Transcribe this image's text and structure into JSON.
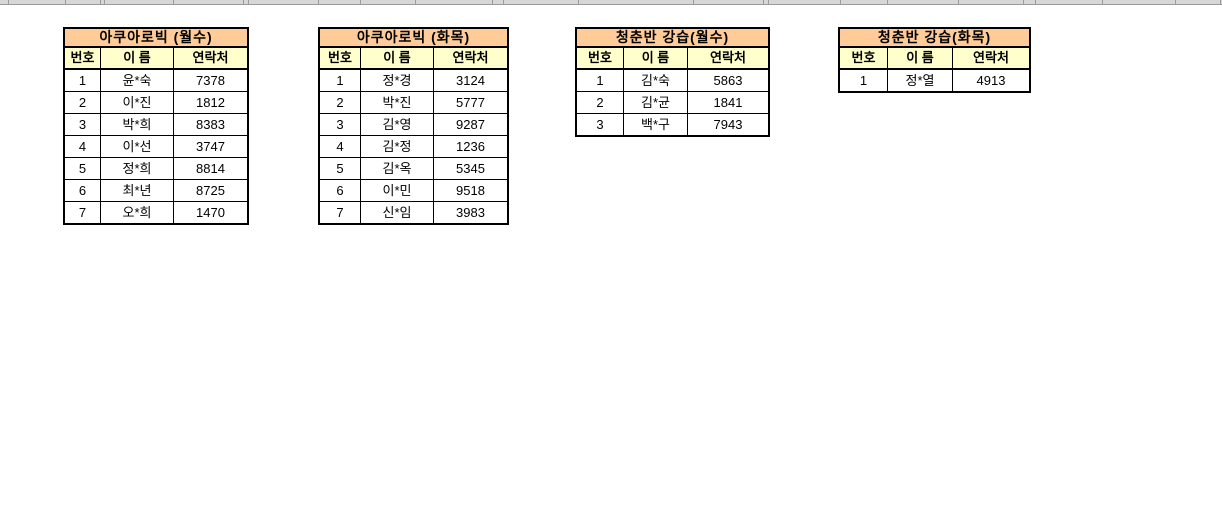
{
  "colors": {
    "title_bg": "#FFCC99",
    "header_bg": "#FFFFCC",
    "table_border": "#000000",
    "gridline": "#9B9B9B",
    "canvas_bg": "#FFFFFF"
  },
  "tables": [
    {
      "title": "아쿠아로빅 (월수)",
      "headers": [
        "번호",
        "이 름",
        "연락처"
      ],
      "rows": [
        [
          "1",
          "윤*숙",
          "7378"
        ],
        [
          "2",
          "이*진",
          "1812"
        ],
        [
          "3",
          "박*희",
          "8383"
        ],
        [
          "4",
          "이*선",
          "3747"
        ],
        [
          "5",
          "정*희",
          "8814"
        ],
        [
          "6",
          "최*년",
          "8725"
        ],
        [
          "7",
          "오*희",
          "1470"
        ]
      ]
    },
    {
      "title": "아쿠아로빅 (화목)",
      "headers": [
        "번호",
        "이 름",
        "연락처"
      ],
      "rows": [
        [
          "1",
          "정*경",
          "3124"
        ],
        [
          "2",
          "박*진",
          "5777"
        ],
        [
          "3",
          "김*영",
          "9287"
        ],
        [
          "4",
          "김*정",
          "1236"
        ],
        [
          "5",
          "김*옥",
          "5345"
        ],
        [
          "6",
          "이*민",
          "9518"
        ],
        [
          "7",
          "신*임",
          "3983"
        ]
      ]
    },
    {
      "title": "청춘반 강습(월수)",
      "headers": [
        "번호",
        "이 름",
        "연락처"
      ],
      "rows": [
        [
          "1",
          "김*숙",
          "5863"
        ],
        [
          "2",
          "김*균",
          "1841"
        ],
        [
          "3",
          "백*구",
          "7943"
        ]
      ]
    },
    {
      "title": "청춘반 강습(화목)",
      "headers": [
        "번호",
        "이 름",
        "연락처"
      ],
      "rows": [
        [
          "1",
          "정*열",
          "4913"
        ]
      ]
    }
  ]
}
